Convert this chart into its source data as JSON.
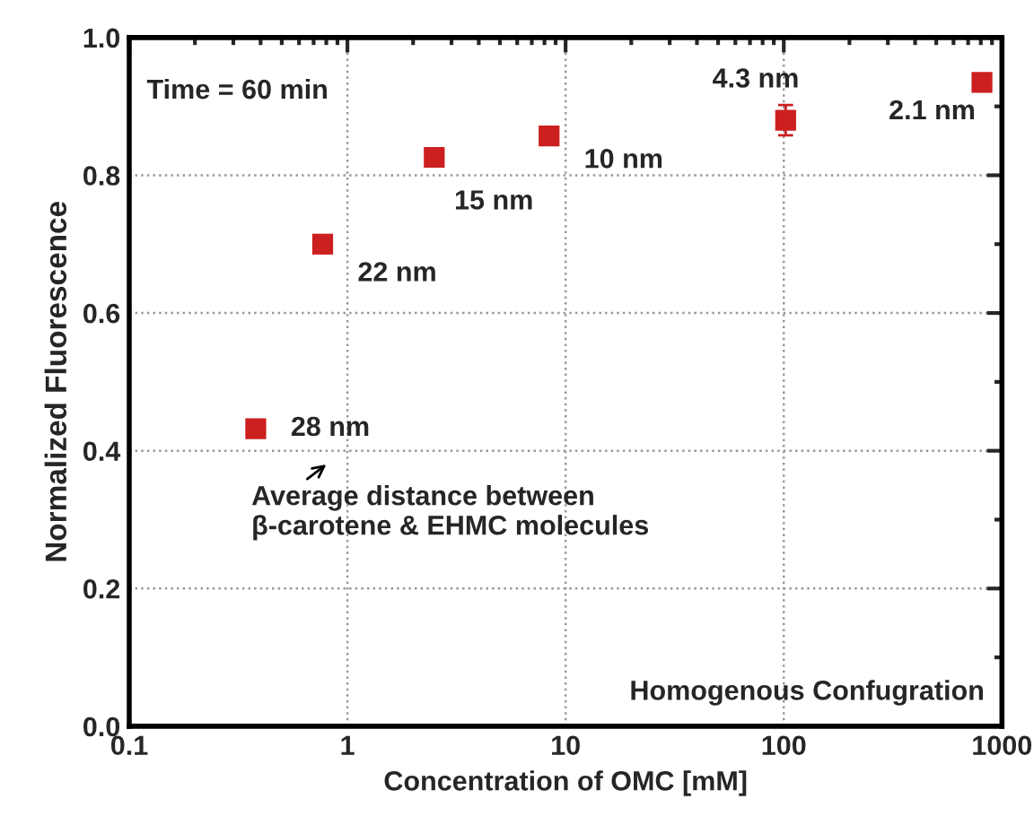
{
  "chart_data": {
    "type": "scatter",
    "xlabel": "Concentration of OMC [mM]",
    "ylabel": "Normalized Fluorescence",
    "x": [
      0.38,
      0.77,
      2.5,
      8.4,
      102,
      810
    ],
    "series": [
      {
        "color": "#cc1f1f",
        "values": [
          0.432,
          0.7,
          0.826,
          0.857,
          0.88,
          0.935
        ],
        "errors": [
          null,
          null,
          null,
          null,
          0.022,
          null
        ]
      }
    ],
    "log": "x",
    "xlim": [
      0.1,
      1000
    ],
    "xticks": [
      0.1,
      1,
      10,
      100,
      1000
    ],
    "ylim": [
      0,
      1
    ],
    "yticks": [
      {
        "value": 0,
        "label": "0.0"
      },
      {
        "value": 0.2,
        "label": "0.2"
      },
      {
        "value": 0.4,
        "label": "0.4"
      },
      {
        "value": 0.6,
        "label": "0.6"
      },
      {
        "value": 0.8,
        "label": "0.8"
      },
      {
        "value": 1,
        "label": "1.0"
      }
    ],
    "grid": true,
    "marker": "square",
    "legend": false,
    "annotations": [
      "Time = 60 min",
      {
        "text": "28 nm",
        "x": 0.38,
        "y": 0.432
      },
      {
        "text": "22 nm",
        "x": 0.77,
        "y": 0.7
      },
      {
        "text": "15 nm",
        "x": 2.5,
        "y": 0.826
      },
      {
        "text": "10 nm",
        "x": 8.4,
        "y": 0.857
      },
      {
        "text": "4.3 nm",
        "x": 102,
        "y": 0.88
      },
      {
        "text": "2.1 nm",
        "x": 810,
        "y": 0.935
      },
      "Average distance between\nβ-carotene & EHMC molecules",
      "Homogenous Confugration"
    ]
  }
}
